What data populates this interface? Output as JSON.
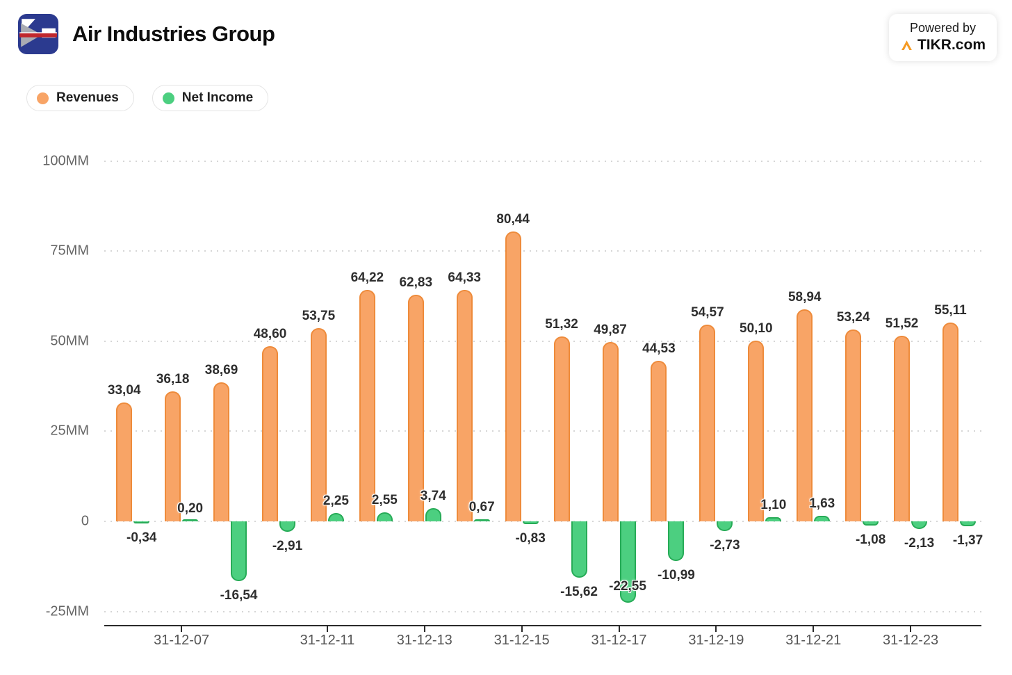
{
  "header": {
    "title": "Air Industries Group",
    "powered_by": {
      "line1": "Powered by",
      "brand": "TIKR.com"
    }
  },
  "legend": [
    {
      "label": "Revenues",
      "color": "#f8a466"
    },
    {
      "label": "Net Income",
      "color": "#4ccf80"
    }
  ],
  "chart_data": {
    "type": "bar",
    "title": "Air Industries Group",
    "unit": "MM",
    "legend_position": "top-left",
    "grid": "horizontal-dotted",
    "y_axis": {
      "tick_labels": [
        "100MM",
        "75MM",
        "50MM",
        "25MM",
        "0",
        "-25MM"
      ],
      "tick_values": [
        100,
        75,
        50,
        25,
        0,
        -25
      ],
      "ylim": [
        -29,
        108
      ]
    },
    "x_axis": {
      "num_groups": 18,
      "tick_labels": [
        "31-12-07",
        "31-12-11",
        "31-12-13",
        "31-12-15",
        "31-12-17",
        "31-12-19",
        "31-12-21",
        "31-12-23"
      ],
      "tick_group_indices": [
        1,
        4,
        6,
        8,
        10,
        12,
        14,
        16
      ]
    },
    "series": [
      {
        "name": "Revenues",
        "color": "#f8a466",
        "border_color": "#ee8b3b",
        "values": [
          33.04,
          36.18,
          38.69,
          48.6,
          53.75,
          64.22,
          62.83,
          64.33,
          80.44,
          51.32,
          49.87,
          44.53,
          54.57,
          50.1,
          58.94,
          53.24,
          51.52,
          55.11
        ],
        "labels": [
          "33,04",
          "36,18",
          "38,69",
          "48,60",
          "53,75",
          "64,22",
          "62,83",
          "64,33",
          "80,44",
          "51,32",
          "49,87",
          "44,53",
          "54,57",
          "50,10",
          "58,94",
          "53,24",
          "51,52",
          "55,11"
        ]
      },
      {
        "name": "Net Income",
        "color": "#4ccf80",
        "border_color": "#27ab57",
        "values": [
          -0.34,
          0.2,
          -16.54,
          -2.91,
          2.25,
          2.55,
          3.74,
          0.67,
          -0.83,
          -15.62,
          -22.55,
          -10.99,
          -2.73,
          1.1,
          1.63,
          -1.08,
          -2.13,
          -1.37
        ],
        "labels": [
          "-0,34",
          "0,20",
          "-16,54",
          "-2,91",
          "2,25",
          "2,55",
          "3,74",
          "0,67",
          "-0,83",
          "-15,62",
          "-22,55",
          "-10,99",
          "-2,73",
          "1,10",
          "1,63",
          "-1,08",
          "-2,13",
          "-1,37"
        ]
      }
    ]
  }
}
